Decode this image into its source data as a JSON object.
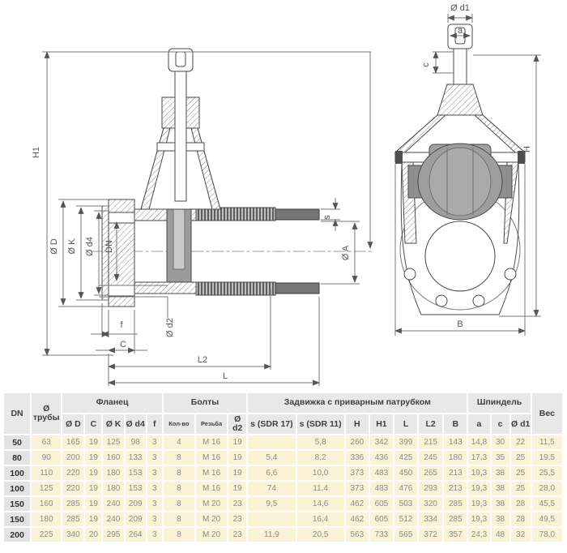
{
  "labels": {
    "H1": "H1",
    "OD": "Ø D",
    "OK": "Ø K",
    "Od4": "Ø d4",
    "DN": "DN",
    "Od2": "Ø d2",
    "f": "f",
    "C": "C",
    "L2": "L2",
    "L": "L",
    "s": "s",
    "OA": "Ø A",
    "Od1": "Ø d1",
    "a": "a",
    "c": "c",
    "H": "H",
    "B": "B"
  },
  "table": {
    "col_dn": "DN",
    "col_pipe": [
      "Ø",
      "трубы"
    ],
    "col_weight": "Вес",
    "groups": [
      {
        "label": "Фланец",
        "span": 5
      },
      {
        "label": "Болты",
        "span": 3
      },
      {
        "label": "Задвижка с приварным патрубком",
        "span": 7
      },
      {
        "label": "Шпиндель",
        "span": 3
      }
    ],
    "subcolumns": [
      "Ø D",
      "C",
      "Ø K",
      "Ø d4",
      "f",
      "Кол-во",
      "Резьба",
      "Ø d2",
      "s (SDR 17)",
      "s (SDR 11)",
      "H",
      "H1",
      "L",
      "L2",
      "B",
      "a",
      "c",
      "Ø d1"
    ],
    "rows": [
      [
        "50",
        "63",
        "165",
        "19",
        "125",
        "98",
        "3",
        "4",
        "M 16",
        "19",
        "",
        "5,8",
        "260",
        "342",
        "399",
        "215",
        "143",
        "14,8",
        "30",
        "22",
        "11,5"
      ],
      [
        "80",
        "90",
        "200",
        "19",
        "160",
        "133",
        "3",
        "8",
        "M 16",
        "19",
        "5,4",
        "8,2",
        "336",
        "436",
        "425",
        "245",
        "180",
        "17,3",
        "35",
        "25",
        "19,5"
      ],
      [
        "100",
        "110",
        "220",
        "19",
        "180",
        "153",
        "3",
        "8",
        "M 16",
        "19",
        "6,6",
        "10,0",
        "373",
        "483",
        "450",
        "265",
        "213",
        "19,3",
        "38",
        "25",
        "25,5"
      ],
      [
        "100",
        "125",
        "220",
        "19",
        "180",
        "153",
        "3",
        "8",
        "M 16",
        "19",
        "74",
        "11,4",
        "373",
        "483",
        "476",
        "293",
        "213",
        "19,3",
        "38",
        "25",
        "28,0"
      ],
      [
        "150",
        "160",
        "285",
        "19",
        "240",
        "209",
        "3",
        "8",
        "M 20",
        "23",
        "9,5",
        "14,6",
        "462",
        "605",
        "503",
        "320",
        "285",
        "19,3",
        "38",
        "28",
        "45,5"
      ],
      [
        "150",
        "180",
        "285",
        "19",
        "240",
        "209",
        "3",
        "8",
        "M 20",
        "23",
        "",
        "16,4",
        "462",
        "605",
        "512",
        "334",
        "285",
        "19,3",
        "38",
        "28",
        "49,5"
      ],
      [
        "200",
        "225",
        "340",
        "20",
        "295",
        "264",
        "3",
        "8",
        "M 20",
        "23",
        "11,9",
        "20,5",
        "563",
        "733",
        "565",
        "372",
        "357",
        "24,3",
        "48",
        "32",
        "78,0"
      ]
    ]
  },
  "colors": {
    "header_bg": "#e8e8e8",
    "dn_cell_bg": "#e3e3e3",
    "data_cell_bg": "#faf3d6",
    "data_text": "#8b8b8b",
    "header_text": "#3f3f3f",
    "drawing_line": "#4a4a4a",
    "disc_fill": "#9e9e9e"
  }
}
